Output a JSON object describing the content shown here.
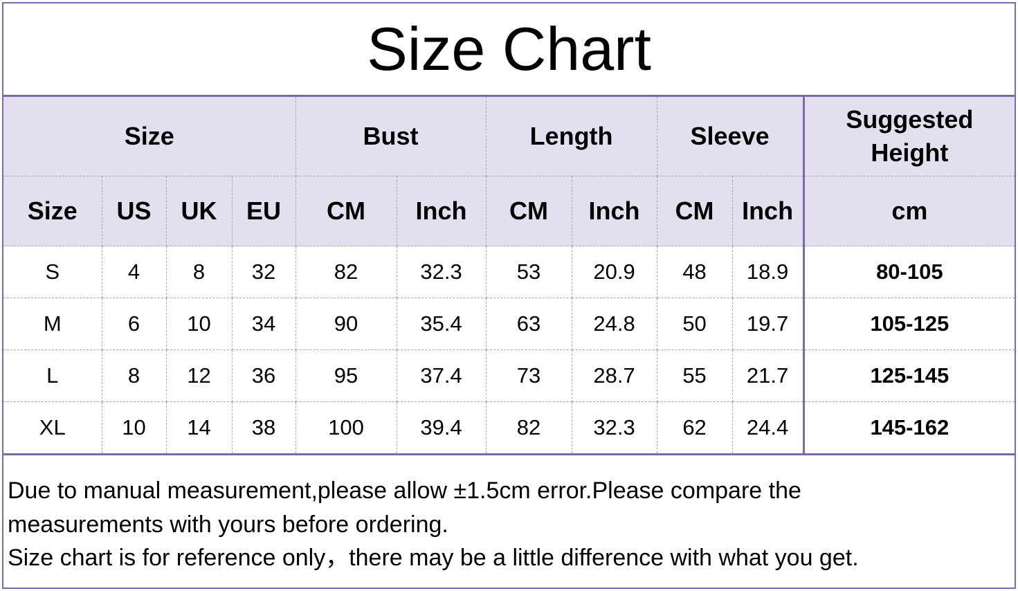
{
  "title": "Size Chart",
  "header_groups": {
    "size": "Size",
    "bust": "Bust",
    "length": "Length",
    "sleeve": "Sleeve",
    "height": "Suggested Height"
  },
  "subheaders": [
    "Size",
    "US",
    "UK",
    "EU",
    "CM",
    "Inch",
    "CM",
    "Inch",
    "CM",
    "Inch",
    "cm"
  ],
  "rows": [
    [
      "S",
      "4",
      "8",
      "32",
      "82",
      "32.3",
      "53",
      "20.9",
      "48",
      "18.9",
      "80-105"
    ],
    [
      "M",
      "6",
      "10",
      "34",
      "90",
      "35.4",
      "63",
      "24.8",
      "50",
      "19.7",
      "105-125"
    ],
    [
      "L",
      "8",
      "12",
      "36",
      "95",
      "37.4",
      "73",
      "28.7",
      "55",
      "21.7",
      "125-145"
    ],
    [
      "XL",
      "10",
      "14",
      "38",
      "100",
      "39.4",
      "82",
      "32.3",
      "62",
      "24.4",
      "145-162"
    ]
  ],
  "notes": [
    "Due to manual measurement,please allow ±1.5cm error.Please compare the measurements with yours before ordering.",
    "Size chart is for reference only，there may be a little difference with what you get."
  ],
  "colors": {
    "header_bg": "#e4dfee",
    "border": "#7b68a6"
  }
}
